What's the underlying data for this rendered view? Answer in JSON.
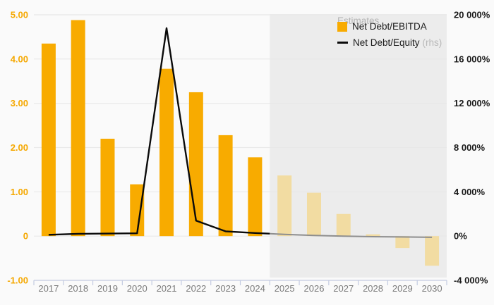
{
  "chart_data": {
    "type": "combo-bar-line",
    "title": "",
    "categories": [
      "2017",
      "2018",
      "2019",
      "2020",
      "2021",
      "2022",
      "2023",
      "2024",
      "2025",
      "2026",
      "2027",
      "2028",
      "2029",
      "2030"
    ],
    "estimates": {
      "label": "Estimates",
      "start_category": "2025",
      "background": "#ECECEC"
    },
    "series": [
      {
        "name": "Net Debt/EBITDA",
        "type": "bar",
        "axis": "left",
        "color": "#F8AB00",
        "estimated_color": "#F2DCA2",
        "values": [
          4.35,
          4.88,
          2.2,
          1.17,
          3.78,
          3.25,
          2.28,
          1.78,
          1.37,
          0.98,
          0.5,
          0.04,
          -0.27,
          -0.67
        ]
      },
      {
        "name": "Net Debt/Equity",
        "axis_note": "(rhs)",
        "type": "line",
        "axis": "right",
        "color": "#0B0B0B",
        "estimated_color": "#8E8E8E",
        "values": [
          120,
          210,
          230,
          250,
          18800,
          1400,
          430,
          280,
          160,
          60,
          0,
          -50,
          -80,
          -110
        ]
      }
    ],
    "left_axis": {
      "labels": [
        "5.00",
        "4.00",
        "3.00",
        "2.00",
        "1.00",
        "0",
        "-1.00"
      ],
      "values": [
        5,
        4,
        3,
        2,
        1,
        0,
        -1
      ],
      "range": [
        -1,
        5
      ],
      "color": "#F5A800"
    },
    "right_axis": {
      "labels": [
        "20 000%",
        "16 000%",
        "12 000%",
        "8 000%",
        "4 000%",
        "0%",
        "-4 000%"
      ],
      "values": [
        20000,
        16000,
        12000,
        8000,
        4000,
        0,
        -4000
      ],
      "range": [
        -4000,
        20000
      ],
      "color": "#1A1A1A"
    },
    "x_axis": {
      "color": "#7A7A7A"
    },
    "grid": "horizontal",
    "legend_position": "top-right",
    "colors": {
      "background": "#FAFAFA",
      "gridline": "#E8E8E8",
      "axis_line": "#C3CBE1"
    }
  }
}
